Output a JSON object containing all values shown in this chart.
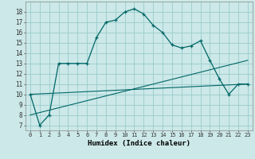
{
  "xlabel": "Humidex (Indice chaleur)",
  "background_color": "#cce8e8",
  "grid_color": "#99cccc",
  "line_color": "#006666",
  "xlim": [
    -0.5,
    23.5
  ],
  "ylim": [
    6.5,
    19.0
  ],
  "xtick_labels": [
    "0",
    "1",
    "2",
    "3",
    "4",
    "5",
    "6",
    "7",
    "8",
    "9",
    "10",
    "11",
    "12",
    "13",
    "14",
    "15",
    "16",
    "17",
    "18",
    "19",
    "20",
    "21",
    "22",
    "23"
  ],
  "ytick_values": [
    7,
    8,
    9,
    10,
    11,
    12,
    13,
    14,
    15,
    16,
    17,
    18
  ],
  "line1_x": [
    0,
    1,
    2,
    3,
    4,
    5,
    6,
    7,
    8,
    9,
    10,
    11,
    12,
    13,
    14,
    15,
    16,
    17,
    18,
    19,
    20,
    21,
    22,
    23
  ],
  "line1_y": [
    10,
    7,
    8,
    13,
    13,
    13,
    13,
    15.5,
    17,
    17.2,
    18,
    18.3,
    17.8,
    16.7,
    16,
    14.8,
    14.5,
    14.7,
    15.2,
    13.3,
    11.5,
    10,
    11,
    11
  ],
  "line2_x": [
    0,
    23
  ],
  "line2_y": [
    10,
    11
  ],
  "line3_x": [
    0,
    23
  ],
  "line3_y": [
    8,
    13.3
  ]
}
